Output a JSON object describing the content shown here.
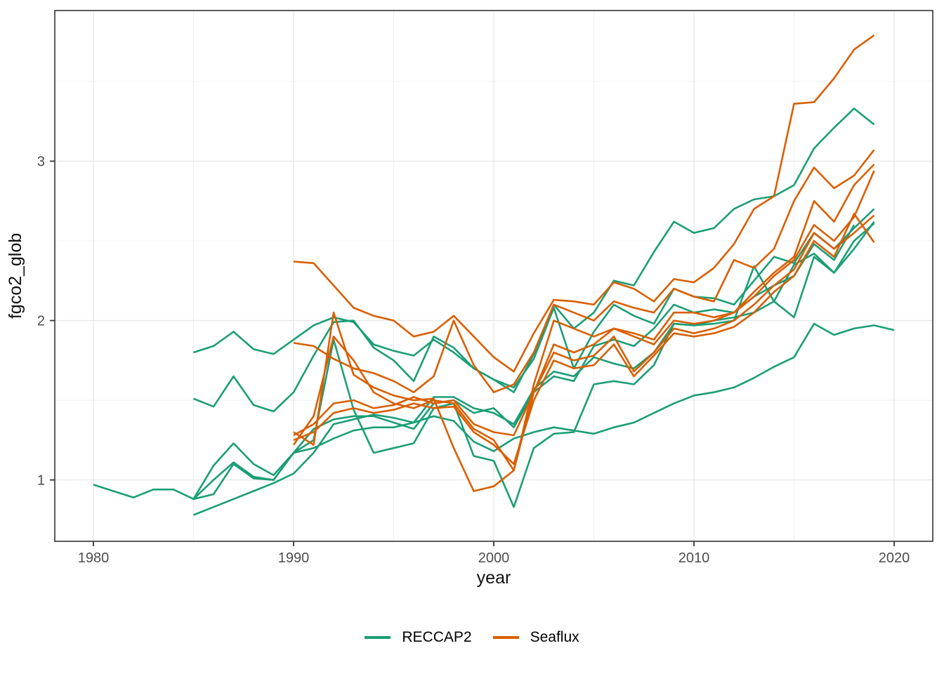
{
  "figure": {
    "xlabel": "year",
    "ylabel": "fgco2_glob"
  },
  "legend": {
    "items": [
      {
        "label": "RECCAP2",
        "color": "#1B9E77"
      },
      {
        "label": "Seaflux",
        "color": "#D95F02"
      }
    ]
  },
  "chart_data": {
    "type": "line",
    "title": "",
    "xlabel": "year",
    "ylabel": "fgco2_glob",
    "xlim": [
      1978.07,
      2021.93
    ],
    "ylim": [
      0.615,
      3.945
    ],
    "x_ticks": [
      1980,
      1990,
      2000,
      2010,
      2020
    ],
    "x_minor": [
      1985,
      1995,
      2005,
      2015
    ],
    "y_ticks": [
      1,
      2,
      3
    ],
    "y_minor": [
      1.5,
      2.5,
      3.5
    ],
    "grid": true,
    "legend_position": "bottom",
    "colors": {
      "RECCAP2": "#1B9E77",
      "Seaflux": "#D95F02"
    },
    "series": [
      {
        "name": "reccap2_1",
        "group": "RECCAP2",
        "start_year": 1980,
        "values": [
          0.97,
          0.93,
          0.89,
          0.94,
          0.94,
          0.88,
          0.91,
          1.1,
          1.01,
          1.0,
          1.17,
          1.2,
          1.26,
          1.31,
          1.33,
          1.33,
          1.36,
          1.4,
          1.37,
          1.24,
          1.18,
          1.26,
          1.3,
          1.33,
          1.31,
          1.29,
          1.33,
          1.36,
          1.42,
          1.48,
          1.53,
          1.55,
          1.58,
          1.64,
          1.71,
          1.77,
          1.98,
          1.91,
          1.95,
          1.97,
          1.94
        ]
      },
      {
        "name": "reccap2_2",
        "group": "RECCAP2",
        "start_year": 1985,
        "values": [
          1.8,
          1.84,
          1.93,
          1.82,
          1.79,
          1.88,
          1.97,
          2.02,
          1.99,
          1.85,
          1.81,
          1.78,
          1.88,
          1.8,
          1.7,
          1.63,
          1.55,
          1.79,
          2.1,
          1.95,
          2.05,
          2.25,
          2.22,
          2.43,
          2.62,
          2.55,
          2.58,
          2.7,
          2.76,
          2.78,
          2.85,
          3.08,
          3.21,
          3.33,
          3.23
        ]
      },
      {
        "name": "reccap2_3",
        "group": "RECCAP2",
        "start_year": 1985,
        "values": [
          1.51,
          1.46,
          1.65,
          1.47,
          1.43,
          1.55,
          1.78,
          1.99,
          2.0,
          1.83,
          1.75,
          1.62,
          1.9,
          1.83,
          1.7,
          1.63,
          1.58,
          1.76,
          2.08,
          1.7,
          1.93,
          2.1,
          2.03,
          1.98,
          2.2,
          2.15,
          2.14,
          2.1,
          2.25,
          2.4,
          2.36,
          2.55,
          2.45,
          2.58,
          2.7
        ]
      },
      {
        "name": "reccap2_4",
        "group": "RECCAP2",
        "start_year": 1985,
        "values": [
          0.88,
          1.09,
          1.23,
          1.1,
          1.03,
          1.17,
          1.25,
          1.88,
          1.44,
          1.17,
          1.2,
          1.23,
          1.45,
          1.48,
          1.15,
          1.12,
          0.83,
          1.2,
          1.29,
          1.3,
          1.6,
          1.62,
          1.6,
          1.72,
          1.98,
          1.97,
          2.0,
          2.02,
          2.05,
          2.12,
          2.02,
          2.4,
          2.3,
          2.45,
          2.62
        ]
      },
      {
        "name": "reccap2_5",
        "group": "RECCAP2",
        "start_year": 1985,
        "values": [
          0.88,
          1.0,
          1.11,
          1.02,
          1.0,
          1.17,
          1.32,
          1.38,
          1.4,
          1.4,
          1.36,
          1.32,
          1.48,
          1.5,
          1.42,
          1.45,
          1.33,
          1.55,
          1.65,
          1.62,
          1.84,
          1.88,
          1.84,
          1.95,
          2.1,
          2.05,
          2.07,
          2.05,
          2.15,
          2.22,
          2.28,
          2.48,
          2.38,
          2.6
        ]
      },
      {
        "name": "reccap2_6",
        "group": "RECCAP2",
        "start_year": 1985,
        "values": [
          0.78,
          0.83,
          0.88,
          0.93,
          0.98,
          1.04,
          1.17,
          1.35,
          1.38,
          1.41,
          1.39,
          1.36,
          1.52,
          1.52,
          1.45,
          1.42,
          1.35,
          1.57,
          1.68,
          1.65,
          1.77,
          1.73,
          1.7,
          1.8,
          1.98,
          1.97,
          1.98,
          2.0,
          2.34,
          2.12,
          2.35,
          2.42,
          2.3,
          2.5,
          2.61
        ]
      },
      {
        "name": "seaflux_1",
        "group": "Seaflux",
        "start_year": 1990,
        "values": [
          2.37,
          2.36,
          2.22,
          2.08,
          2.03,
          2.0,
          1.9,
          1.93,
          2.03,
          1.9,
          1.77,
          1.68,
          1.92,
          2.13,
          2.12,
          2.1,
          2.24,
          2.2,
          2.12,
          2.26,
          2.24,
          2.33,
          2.48,
          2.7,
          2.78,
          3.36,
          3.37,
          3.52,
          3.7,
          3.79
        ]
      },
      {
        "name": "seaflux_2",
        "group": "Seaflux",
        "start_year": 1990,
        "values": [
          1.86,
          1.84,
          1.76,
          1.7,
          1.67,
          1.62,
          1.55,
          1.65,
          2.0,
          1.72,
          1.55,
          1.6,
          1.8,
          2.1,
          2.05,
          2.0,
          2.12,
          2.08,
          2.05,
          2.2,
          2.15,
          2.12,
          2.38,
          2.33,
          2.45,
          2.75,
          2.96,
          2.83,
          2.91,
          3.07
        ]
      },
      {
        "name": "seaflux_3",
        "group": "Seaflux",
        "start_year": 1990,
        "values": [
          1.3,
          1.22,
          2.05,
          1.66,
          1.58,
          1.53,
          1.5,
          1.51,
          1.2,
          0.93,
          0.96,
          1.06,
          1.6,
          2.0,
          1.95,
          1.9,
          1.95,
          1.92,
          1.88,
          2.05,
          2.05,
          2.02,
          2.05,
          2.18,
          2.3,
          2.4,
          2.75,
          2.62,
          2.85,
          2.98
        ]
      },
      {
        "name": "seaflux_4",
        "group": "Seaflux",
        "start_year": 1990,
        "values": [
          1.28,
          1.35,
          1.48,
          1.5,
          1.45,
          1.47,
          1.52,
          1.48,
          1.5,
          1.35,
          1.3,
          1.28,
          1.55,
          1.85,
          1.8,
          1.85,
          1.95,
          1.9,
          1.85,
          2.0,
          1.98,
          2.0,
          2.05,
          2.15,
          2.28,
          2.38,
          2.6,
          2.5,
          2.65,
          2.94
        ]
      },
      {
        "name": "seaflux_5",
        "group": "Seaflux",
        "start_year": 1990,
        "values": [
          1.22,
          1.4,
          1.9,
          1.75,
          1.55,
          1.48,
          1.45,
          1.5,
          1.48,
          1.32,
          1.25,
          1.06,
          1.55,
          1.8,
          1.75,
          1.78,
          1.9,
          1.68,
          1.8,
          1.95,
          1.92,
          1.95,
          2.0,
          2.1,
          2.22,
          2.32,
          2.55,
          2.45,
          2.55,
          2.66
        ]
      },
      {
        "name": "seaflux_6",
        "group": "Seaflux",
        "start_year": 1990,
        "values": [
          1.25,
          1.3,
          1.42,
          1.45,
          1.42,
          1.44,
          1.48,
          1.45,
          1.46,
          1.3,
          1.22,
          1.1,
          1.5,
          1.75,
          1.7,
          1.72,
          1.85,
          1.65,
          1.78,
          1.92,
          1.9,
          1.92,
          1.96,
          2.05,
          2.18,
          2.28,
          2.5,
          2.4,
          2.67,
          2.49
        ]
      }
    ]
  }
}
